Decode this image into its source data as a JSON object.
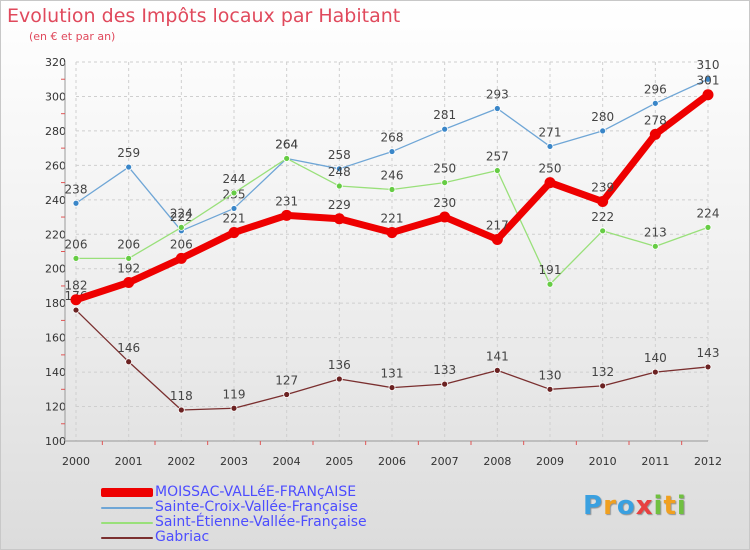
{
  "header": {
    "title": "Evolution des Impôts locaux par Habitant",
    "subtitle": "(en € et par an)"
  },
  "logo": {
    "text": "Proxiti",
    "letters": [
      {
        "char": "P",
        "color": "#3aa0e0"
      },
      {
        "char": "r",
        "color": "#f0a020"
      },
      {
        "char": "o",
        "color": "#3aa0e0"
      },
      {
        "char": "x",
        "color": "#e84040"
      },
      {
        "char": "i",
        "color": "#70c040"
      },
      {
        "char": "t",
        "color": "#f0a020"
      },
      {
        "char": "i",
        "color": "#70c040"
      }
    ]
  },
  "chart_data": {
    "type": "line",
    "title": "Evolution des Impôts locaux par Habitant",
    "subtitle": "(en € et par an)",
    "xlabel": "",
    "ylabel": "",
    "categories": [
      "2000",
      "2001",
      "2002",
      "2003",
      "2004",
      "2005",
      "2006",
      "2007",
      "2008",
      "2009",
      "2010",
      "2011",
      "2012"
    ],
    "yticks": [
      100,
      120,
      140,
      160,
      180,
      200,
      220,
      240,
      260,
      280,
      300,
      320
    ],
    "ylim": [
      100,
      320
    ],
    "grid": true,
    "legend_position": "bottom-left",
    "series": [
      {
        "name": "MOISSAC-VALLéE-FRANçAISE",
        "color": "#ee0000",
        "marker": "#ee0000",
        "width": 7,
        "values": [
          182,
          192,
          206,
          221,
          231,
          229,
          221,
          230,
          217,
          250,
          239,
          278,
          301
        ]
      },
      {
        "name": "Sainte-Croix-Vallée-Française",
        "color": "#6fa6d6",
        "marker": "#3a86c8",
        "width": 1.3,
        "values": [
          238,
          259,
          222,
          235,
          264,
          258,
          268,
          281,
          293,
          271,
          280,
          296,
          310
        ]
      },
      {
        "name": "Saint-Étienne-Vallée-Française",
        "color": "#99e07a",
        "marker": "#66cc44",
        "width": 1.3,
        "values": [
          206,
          206,
          224,
          244,
          264,
          248,
          246,
          250,
          257,
          191,
          222,
          213,
          224
        ]
      },
      {
        "name": "Gabriac",
        "color": "#7a2f2f",
        "marker": "#6b2222",
        "width": 1.3,
        "values": [
          176,
          146,
          118,
          119,
          127,
          136,
          131,
          133,
          141,
          130,
          132,
          140,
          143
        ]
      }
    ]
  }
}
